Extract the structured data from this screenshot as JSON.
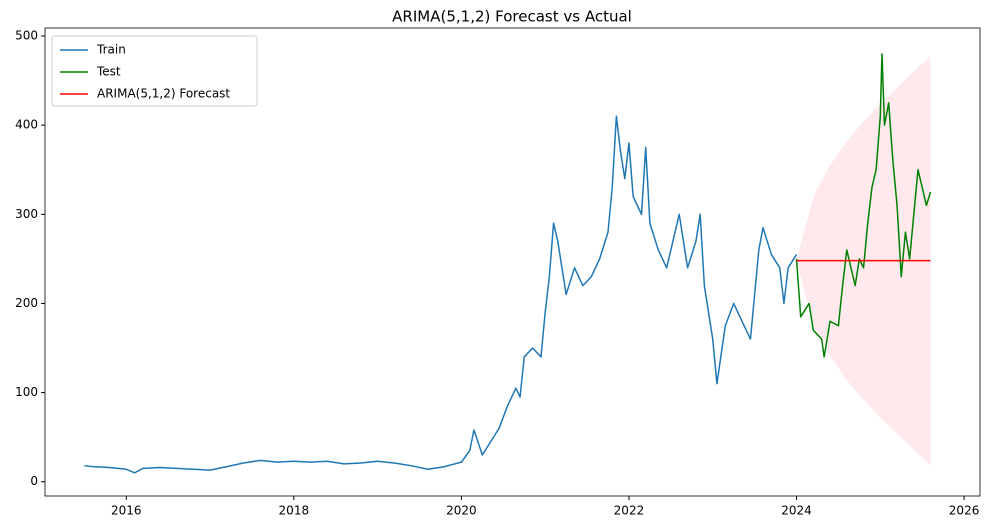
{
  "chart_data": {
    "type": "line",
    "title": "ARIMA(5,1,2) Forecast vs Actual",
    "xlim": [
      2015.03,
      2026.19
    ],
    "xticks": [
      2016,
      2018,
      2020,
      2022,
      2024,
      2026
    ],
    "ylim": [
      -16,
      509
    ],
    "yticks": [
      0,
      100,
      200,
      300,
      400,
      500
    ],
    "legend": "upper-left",
    "band_color": "#ffc0cb",
    "ci_x": [
      2024.0,
      2024.2,
      2024.4,
      2024.6,
      2024.8,
      2025.0,
      2025.2,
      2025.4,
      2025.6
    ],
    "ci_upper": [
      248,
      320,
      355,
      382,
      404,
      424,
      442,
      460,
      478
    ],
    "ci_lower": [
      248,
      176,
      141,
      114,
      92,
      72,
      54,
      36,
      18
    ],
    "series": [
      {
        "name": "Train",
        "color": "#1f77b4",
        "x": [
          2015.5,
          2015.6,
          2015.8,
          2016.0,
          2016.1,
          2016.2,
          2016.4,
          2016.6,
          2016.8,
          2017.0,
          2017.2,
          2017.4,
          2017.6,
          2017.8,
          2018.0,
          2018.2,
          2018.4,
          2018.6,
          2018.8,
          2019.0,
          2019.2,
          2019.4,
          2019.6,
          2019.8,
          2020.0,
          2020.1,
          2020.15,
          2020.25,
          2020.35,
          2020.45,
          2020.55,
          2020.65,
          2020.7,
          2020.75,
          2020.85,
          2020.95,
          2021.0,
          2021.05,
          2021.1,
          2021.15,
          2021.25,
          2021.35,
          2021.45,
          2021.55,
          2021.65,
          2021.75,
          2021.8,
          2021.85,
          2021.9,
          2021.95,
          2022.0,
          2022.05,
          2022.15,
          2022.2,
          2022.25,
          2022.35,
          2022.45,
          2022.55,
          2022.6,
          2022.7,
          2022.8,
          2022.85,
          2022.9,
          2023.0,
          2023.05,
          2023.15,
          2023.25,
          2023.35,
          2023.45,
          2023.5,
          2023.55,
          2023.6,
          2023.7,
          2023.8,
          2023.85,
          2023.9,
          2024.0
        ],
        "values": [
          18,
          17,
          16,
          14,
          10,
          15,
          16,
          15,
          14,
          13,
          17,
          21,
          24,
          22,
          23,
          22,
          23,
          20,
          21,
          23,
          21,
          18,
          14,
          17,
          22,
          35,
          58,
          30,
          45,
          60,
          85,
          105,
          95,
          140,
          150,
          140,
          190,
          230,
          290,
          270,
          210,
          240,
          220,
          230,
          250,
          280,
          330,
          410,
          370,
          340,
          380,
          320,
          300,
          375,
          290,
          260,
          240,
          280,
          300,
          240,
          270,
          300,
          220,
          160,
          110,
          175,
          200,
          180,
          160,
          210,
          260,
          285,
          255,
          240,
          200,
          240,
          255
        ]
      },
      {
        "name": "Test",
        "color": "#008000",
        "x": [
          2024.0,
          2024.05,
          2024.15,
          2024.2,
          2024.3,
          2024.33,
          2024.4,
          2024.5,
          2024.55,
          2024.6,
          2024.7,
          2024.75,
          2024.8,
          2024.85,
          2024.9,
          2024.95,
          2025.0,
          2025.02,
          2025.05,
          2025.1,
          2025.15,
          2025.2,
          2025.25,
          2025.3,
          2025.35,
          2025.4,
          2025.45,
          2025.5,
          2025.55,
          2025.6
        ],
        "values": [
          250,
          185,
          200,
          170,
          160,
          140,
          180,
          175,
          220,
          260,
          220,
          250,
          240,
          290,
          330,
          350,
          410,
          480,
          400,
          425,
          360,
          310,
          230,
          280,
          250,
          300,
          350,
          330,
          310,
          325
        ]
      },
      {
        "name": "ARIMA(5,1,2) Forecast",
        "color": "#ff0000",
        "x": [
          2024.0,
          2025.6
        ],
        "values": [
          248,
          248
        ]
      }
    ]
  }
}
